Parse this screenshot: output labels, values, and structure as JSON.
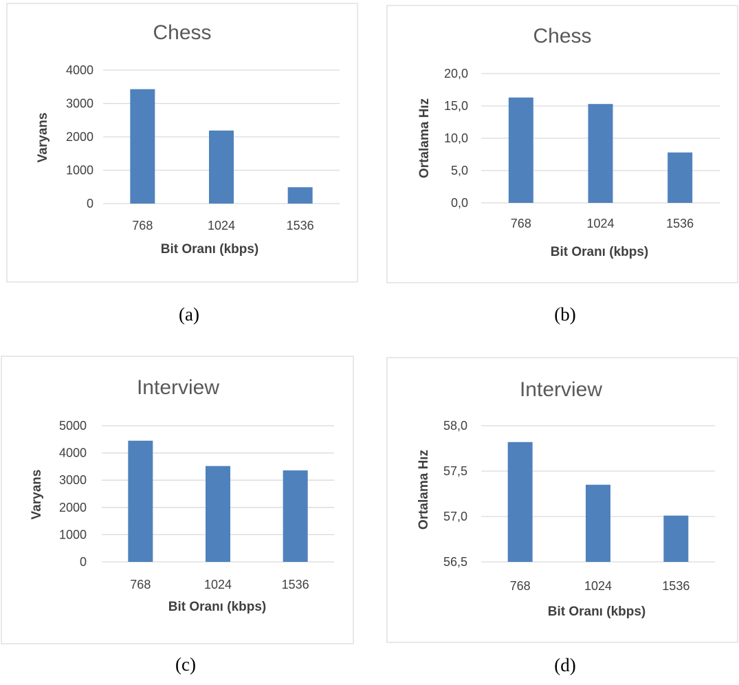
{
  "chart_data": [
    {
      "type": "bar",
      "title": "Chess",
      "categories": [
        "768",
        "1024",
        "1536"
      ],
      "values": [
        3430,
        2190,
        490
      ],
      "ylabel": "Varyans",
      "xlabel": "Bit Oranı (kbps)",
      "ylim": [
        0,
        4000
      ],
      "yticks": [
        "4000",
        "3000",
        "2000",
        "1000",
        "0"
      ],
      "grid": true,
      "legend": "none",
      "caption": "(a)"
    },
    {
      "type": "bar",
      "title": "Chess",
      "categories": [
        "768",
        "1024",
        "1536"
      ],
      "values": [
        16.3,
        15.3,
        7.8
      ],
      "ylabel": "Ortalama Hız",
      "xlabel": "Bit Oranı (kbps)",
      "ylim": [
        0,
        20
      ],
      "yticks": [
        "20,0",
        "15,0",
        "10,0",
        "5,0",
        "0,0"
      ],
      "grid": true,
      "legend": "none",
      "caption": "(b)"
    },
    {
      "type": "bar",
      "title": "Interview",
      "categories": [
        "768",
        "1024",
        "1536"
      ],
      "values": [
        4450,
        3520,
        3360
      ],
      "ylabel": "Varyans",
      "xlabel": "Bit Oranı (kbps)",
      "ylim": [
        0,
        5000
      ],
      "yticks": [
        "5000",
        "4000",
        "3000",
        "2000",
        "1000",
        "0"
      ],
      "grid": true,
      "legend": "none",
      "caption": "(c)"
    },
    {
      "type": "bar",
      "title": "Interview",
      "categories": [
        "768",
        "1024",
        "1536"
      ],
      "values": [
        57.82,
        57.35,
        57.01
      ],
      "ylabel": "Ortalama Hız",
      "xlabel": "Bit Oranı (kbps)",
      "ylim": [
        56.5,
        58.0
      ],
      "yticks": [
        "58,0",
        "57,5",
        "57,0",
        "56,5"
      ],
      "grid": true,
      "legend": "none",
      "caption": "(d)"
    }
  ],
  "colors": {
    "bar": "#4f81bd",
    "grid": "#d9d9d9",
    "frame": "#d9d9d9"
  }
}
